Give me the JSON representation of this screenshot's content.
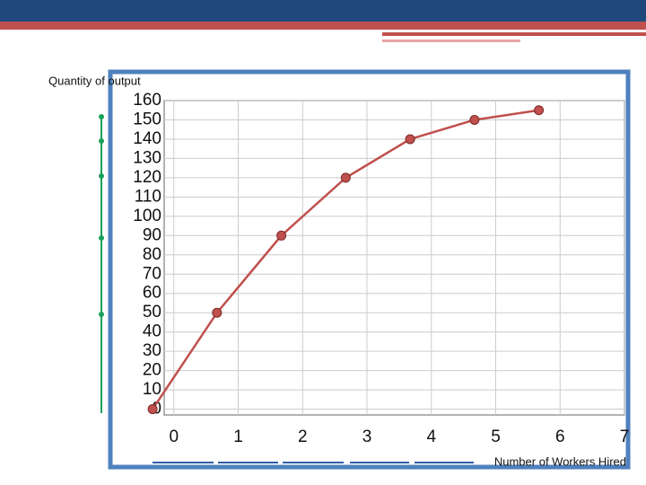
{
  "chart_data": {
    "type": "line",
    "y_label": "Quantity of output",
    "x_label": "Number of Workers Hired",
    "x": [
      -0.33,
      0.67,
      1.67,
      2.67,
      3.67,
      4.67,
      5.67
    ],
    "series": [
      {
        "color": "#c0504d",
        "values": [
          0,
          50,
          90,
          120,
          140,
          150,
          155
        ]
      }
    ],
    "xlim": [
      -0.15,
      7
    ],
    "xticks": [
      0,
      1,
      2,
      3,
      4,
      5,
      6,
      7
    ],
    "ylim": [
      -3,
      160
    ],
    "yticks": [
      0,
      10,
      20,
      30,
      40,
      50,
      60,
      70,
      80,
      90,
      100,
      110,
      120,
      130,
      140,
      150,
      160
    ],
    "grid": true
  }
}
